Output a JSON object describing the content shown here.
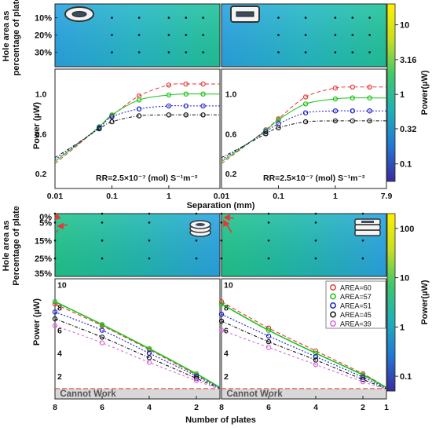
{
  "colors": {
    "curve_60": "#e53935",
    "curve_57": "#16c416",
    "curve_51": "#1a1ad0",
    "curve_45": "#111111",
    "curve_39": "#d86ad8",
    "heatmap_top": [
      "#2aa4e2",
      "#26b9c7",
      "#22c49a"
    ],
    "heatmap_bottom": [
      "#22c58a",
      "#21b9b0",
      "#2aa4e2"
    ],
    "colorbar": [
      "#fff000",
      "#c9df1f",
      "#3fc86a",
      "#1fb1b6",
      "#2277d6",
      "#3a2aa0"
    ],
    "cannot_work_band": "#d8d8d8",
    "arrow": "#e53935"
  },
  "chart_data": [
    {
      "type": "heatmap",
      "panel": "top-left heatmap",
      "ylabel": "Hole area as percentage of plate",
      "y_tick_labels": [
        "10%",
        "20%",
        "30%"
      ],
      "colorbar_ref": "top",
      "sample_points": [
        {
          "x_mm": 0.1,
          "y_pct": 10
        },
        {
          "x_mm": 0.3,
          "y_pct": 10
        },
        {
          "x_mm": 1,
          "y_pct": 10
        },
        {
          "x_mm": 2,
          "y_pct": 10
        },
        {
          "x_mm": 4,
          "y_pct": 10
        },
        {
          "x_mm": 0.1,
          "y_pct": 20
        },
        {
          "x_mm": 0.3,
          "y_pct": 20
        },
        {
          "x_mm": 1,
          "y_pct": 20
        },
        {
          "x_mm": 2,
          "y_pct": 20
        },
        {
          "x_mm": 4,
          "y_pct": 20
        },
        {
          "x_mm": 0.1,
          "y_pct": 30
        },
        {
          "x_mm": 0.3,
          "y_pct": 30
        },
        {
          "x_mm": 1,
          "y_pct": 30
        },
        {
          "x_mm": 2,
          "y_pct": 30
        },
        {
          "x_mm": 4,
          "y_pct": 30
        }
      ]
    },
    {
      "type": "heatmap",
      "panel": "top-right heatmap",
      "colorbar_ref": "top",
      "sample_points": [
        {
          "x_mm": 0.1,
          "y_pct": 10
        },
        {
          "x_mm": 0.3,
          "y_pct": 10
        },
        {
          "x_mm": 1,
          "y_pct": 10
        },
        {
          "x_mm": 2,
          "y_pct": 10
        },
        {
          "x_mm": 4,
          "y_pct": 10
        },
        {
          "x_mm": 0.1,
          "y_pct": 20
        },
        {
          "x_mm": 0.3,
          "y_pct": 20
        },
        {
          "x_mm": 1,
          "y_pct": 20
        },
        {
          "x_mm": 2,
          "y_pct": 20
        },
        {
          "x_mm": 4,
          "y_pct": 20
        },
        {
          "x_mm": 0.1,
          "y_pct": 30
        },
        {
          "x_mm": 0.3,
          "y_pct": 30
        },
        {
          "x_mm": 1,
          "y_pct": 30
        },
        {
          "x_mm": 2,
          "y_pct": 30
        },
        {
          "x_mm": 4,
          "y_pct": 30
        }
      ]
    },
    {
      "type": "scatter",
      "panel": "top-left curves",
      "xscale": "log",
      "xlim": [
        0.01,
        7.9
      ],
      "ylim": [
        0.05,
        1.25
      ],
      "x_tick_labels": [
        "0.01",
        "0.1",
        "1"
      ],
      "x_ticks": [
        0.01,
        0.1,
        1
      ],
      "y_tick_labels": [
        "0.2",
        "0.6",
        "1.0"
      ],
      "y_ticks": [
        0.2,
        0.6,
        1.0
      ],
      "ylabel": "Power (µW)",
      "annotation": "RR=2.5×10⁻⁷ (mol) S⁻¹m⁻²",
      "x": [
        0.06,
        0.1,
        0.3,
        1,
        2,
        4
      ],
      "series": [
        {
          "name": "AREA=60",
          "color_key": "curve_60",
          "values": [
            0.67,
            0.78,
            0.98,
            1.09,
            1.1,
            1.1
          ]
        },
        {
          "name": "AREA=57",
          "color_key": "curve_57",
          "values": [
            0.67,
            0.79,
            0.94,
            0.99,
            1.0,
            1.0
          ]
        },
        {
          "name": "AREA=51",
          "color_key": "curve_51",
          "values": [
            0.66,
            0.77,
            0.85,
            0.88,
            0.88,
            0.88
          ]
        },
        {
          "name": "AREA=45",
          "color_key": "curve_45",
          "values": [
            0.65,
            0.72,
            0.78,
            0.79,
            0.79,
            0.79
          ]
        }
      ]
    },
    {
      "type": "scatter",
      "panel": "top-right curves",
      "xscale": "log",
      "xlim": [
        0.01,
        7.9
      ],
      "ylim": [
        0.05,
        1.25
      ],
      "x_tick_labels": [
        "0.01",
        "0.1",
        "1",
        "7.9"
      ],
      "x_ticks": [
        0.01,
        0.1,
        1,
        7.9
      ],
      "y_tick_labels": [
        "0.2",
        "0.6",
        "1.0"
      ],
      "y_ticks": [
        0.2,
        0.6,
        1.0
      ],
      "xlabel": "Separation (mm)",
      "annotation": "RR=2.5×10⁻⁷ (mol) S⁻¹m⁻²",
      "x": [
        0.06,
        0.1,
        0.3,
        1,
        2,
        4
      ],
      "series": [
        {
          "name": "AREA=60",
          "color_key": "curve_60",
          "values": [
            0.64,
            0.75,
            0.97,
            1.06,
            1.07,
            1.07
          ]
        },
        {
          "name": "AREA=57",
          "color_key": "curve_57",
          "values": [
            0.63,
            0.74,
            0.9,
            0.95,
            0.96,
            0.96
          ]
        },
        {
          "name": "AREA=51",
          "color_key": "curve_51",
          "values": [
            0.62,
            0.7,
            0.81,
            0.83,
            0.83,
            0.83
          ]
        },
        {
          "name": "AREA=45",
          "color_key": "curve_45",
          "values": [
            0.6,
            0.66,
            0.72,
            0.73,
            0.73,
            0.73
          ]
        }
      ]
    },
    {
      "type": "heatmap",
      "panel": "bottom-left heatmap",
      "ylabel": "Hole area as Percentage of plate",
      "y_tick_labels": [
        "0%",
        "5%",
        "15%",
        "25%",
        "35%"
      ],
      "y_ticks": [
        0,
        5,
        15,
        25,
        35
      ],
      "colorbar_ref": "bottom",
      "sample_points": [
        {
          "n": 8,
          "y_pct": 0
        },
        {
          "n": 6,
          "y_pct": 0
        },
        {
          "n": 4,
          "y_pct": 0
        },
        {
          "n": 2,
          "y_pct": 0
        },
        {
          "n": 8,
          "y_pct": 5
        },
        {
          "n": 6,
          "y_pct": 5
        },
        {
          "n": 4,
          "y_pct": 5
        },
        {
          "n": 2,
          "y_pct": 5
        },
        {
          "n": 8,
          "y_pct": 15
        },
        {
          "n": 6,
          "y_pct": 15
        },
        {
          "n": 4,
          "y_pct": 15
        },
        {
          "n": 2,
          "y_pct": 15
        },
        {
          "n": 8,
          "y_pct": 25
        },
        {
          "n": 6,
          "y_pct": 25
        },
        {
          "n": 4,
          "y_pct": 25
        },
        {
          "n": 2,
          "y_pct": 25
        }
      ]
    },
    {
      "type": "heatmap",
      "panel": "bottom-right heatmap",
      "colorbar_ref": "bottom",
      "sample_points": [
        {
          "n": 8,
          "y_pct": 0
        },
        {
          "n": 6,
          "y_pct": 0
        },
        {
          "n": 4,
          "y_pct": 0
        },
        {
          "n": 2,
          "y_pct": 0
        },
        {
          "n": 8,
          "y_pct": 5
        },
        {
          "n": 6,
          "y_pct": 5
        },
        {
          "n": 4,
          "y_pct": 5
        },
        {
          "n": 2,
          "y_pct": 5
        },
        {
          "n": 8,
          "y_pct": 15
        },
        {
          "n": 6,
          "y_pct": 15
        },
        {
          "n": 4,
          "y_pct": 15
        },
        {
          "n": 2,
          "y_pct": 15
        },
        {
          "n": 8,
          "y_pct": 25
        },
        {
          "n": 6,
          "y_pct": 25
        },
        {
          "n": 4,
          "y_pct": 25
        },
        {
          "n": 2,
          "y_pct": 25
        }
      ]
    },
    {
      "type": "scatter",
      "panel": "bottom-left curves",
      "xlim": [
        8,
        1
      ],
      "ylim": [
        0,
        10.5
      ],
      "x_tick_labels": [
        "8",
        "6",
        "4",
        "2"
      ],
      "x_ticks": [
        8,
        6,
        4,
        2
      ],
      "y_tick_labels": [
        "2",
        "4",
        "6",
        "8",
        "10"
      ],
      "y_ticks": [
        2,
        4,
        6,
        8,
        10
      ],
      "ylabel": "Power (µW)",
      "cannot_work_label": "Cannot Work",
      "cannot_work_below": 0.9,
      "x": [
        8,
        6,
        4,
        2,
        1
      ],
      "series": [
        {
          "name": "AREA=60",
          "color_key": "curve_60",
          "values": [
            8.3,
            6.4,
            4.3,
            2.1,
            1.0
          ]
        },
        {
          "name": "AREA=57",
          "color_key": "curve_57",
          "values": [
            8.5,
            6.5,
            4.4,
            2.2,
            1.0
          ]
        },
        {
          "name": "AREA=51",
          "color_key": "curve_51",
          "values": [
            7.6,
            6.0,
            4.0,
            2.0,
            0.95
          ]
        },
        {
          "name": "AREA=45",
          "color_key": "curve_45",
          "values": [
            7.0,
            5.4,
            3.6,
            1.8,
            0.9
          ]
        },
        {
          "name": "AREA=39",
          "color_key": "curve_39",
          "values": [
            6.4,
            4.9,
            3.2,
            1.6,
            0.85
          ]
        }
      ]
    },
    {
      "type": "scatter",
      "panel": "bottom-right curves",
      "xlim": [
        8,
        1
      ],
      "ylim": [
        0,
        10.5
      ],
      "x_tick_labels": [
        "8",
        "6",
        "4",
        "2",
        "1"
      ],
      "x_ticks": [
        8,
        6,
        4,
        2,
        1
      ],
      "y_tick_labels": [
        "2",
        "4",
        "6",
        "8",
        "10"
      ],
      "y_ticks": [
        2,
        4,
        6,
        8,
        10
      ],
      "cannot_work_label": "Cannot Work",
      "cannot_work_below": 0.9,
      "x": [
        8,
        6,
        4,
        2,
        1
      ],
      "series": [
        {
          "name": "AREA=60",
          "color_key": "curve_60",
          "values": [
            8.5,
            6.2,
            4.2,
            2.2,
            1.0
          ]
        },
        {
          "name": "AREA=57",
          "color_key": "curve_57",
          "values": [
            8.3,
            6.0,
            4.0,
            2.1,
            1.0
          ]
        },
        {
          "name": "AREA=51",
          "color_key": "curve_51",
          "values": [
            7.4,
            5.5,
            3.7,
            1.9,
            0.95
          ]
        },
        {
          "name": "AREA=45",
          "color_key": "curve_45",
          "values": [
            6.8,
            5.0,
            3.4,
            1.7,
            0.9
          ]
        },
        {
          "name": "AREA=39",
          "color_key": "curve_39",
          "values": [
            6.0,
            4.5,
            3.0,
            1.5,
            0.85
          ]
        }
      ]
    }
  ],
  "colorbars": {
    "top": {
      "label": "Power(µW)",
      "tick_labels": [
        "10",
        "3.16",
        "1",
        "0.32",
        "0.1"
      ],
      "tick_values": [
        10,
        3.16,
        1,
        0.32,
        0.1
      ],
      "range": [
        0.056,
        20
      ]
    },
    "bottom": {
      "label": "Power(µW)",
      "tick_labels": [
        "100",
        "10",
        "1",
        "0.1"
      ],
      "tick_values": [
        100,
        10,
        1,
        0.1
      ],
      "range": [
        0.05,
        200
      ]
    }
  },
  "legend": {
    "placement": "top-right of bottom-right curve panel",
    "entries": [
      "AREA=60",
      "AREA=57",
      "AREA=51",
      "AREA=45",
      "AREA=39"
    ]
  },
  "labels": {
    "top_ylabel_line1": "Hole area as",
    "top_ylabel_line2": "percentage of  plate",
    "bottom_ylabel_line1": "Hole area as",
    "bottom_ylabel_line2": "Percentage of  plate",
    "separation_xlabel": "Separation (mm)",
    "plates_xlabel": "Number of plates"
  },
  "icons": {
    "top_left": "ellipse-plate-icon",
    "top_right": "rectangle-plate-icon",
    "bottom_left": "stacked-ellipse-plates-icon",
    "bottom_right": "stacked-rectangle-plates-icon"
  }
}
